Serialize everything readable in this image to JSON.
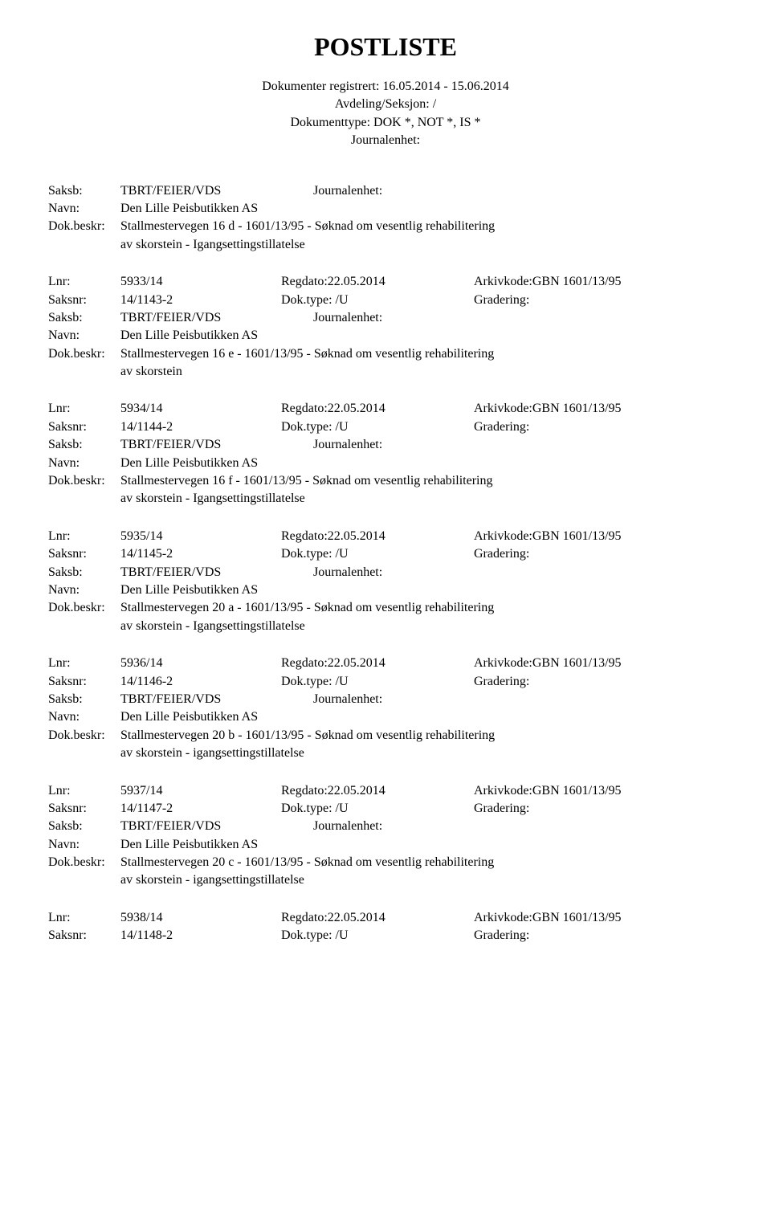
{
  "title": "POSTLISTE",
  "header": {
    "line1": "Dokumenter registrert: 16.05.2014 - 15.06.2014",
    "line2": "Avdeling/Seksjon: /",
    "line3": "Dokumenttype: DOK *, NOT *, IS *",
    "line4": "Journalenhet:"
  },
  "labels": {
    "saksb": "Saksb:",
    "navn": "Navn:",
    "dokbeskr": "Dok.beskr:",
    "lnr": "Lnr:",
    "saksnr": "Saksnr:"
  },
  "topEntry": {
    "saksb_val": "TBRT/FEIER/VDS",
    "saksb_right": "Journalenhet:",
    "navn_val": "Den Lille Peisbutikken AS",
    "dok_line1": "Stallmestervegen 16 d - 1601/13/95 - Søknad om vesentlig rehabilitering",
    "dok_line2": "av skorstein  - Igangsettingstillatelse"
  },
  "entries": [
    {
      "lnr": "5933/14",
      "regdato": "Regdato:22.05.2014",
      "arkiv": "Arkivkode:GBN 1601/13/95",
      "saksnr": "14/1143-2",
      "doktype": "Dok.type: /U",
      "gradering": "Gradering:",
      "saksb_val": "TBRT/FEIER/VDS",
      "saksb_right": "Journalenhet:",
      "navn_val": "Den Lille Peisbutikken AS",
      "dok_line1": "Stallmestervegen 16 e - 1601/13/95 - Søknad om vesentlig rehabilitering",
      "dok_line2": "av skorstein"
    },
    {
      "lnr": "5934/14",
      "regdato": "Regdato:22.05.2014",
      "arkiv": "Arkivkode:GBN 1601/13/95",
      "saksnr": "14/1144-2",
      "doktype": "Dok.type: /U",
      "gradering": "Gradering:",
      "saksb_val": "TBRT/FEIER/VDS",
      "saksb_right": "Journalenhet:",
      "navn_val": "Den Lille Peisbutikken AS",
      "dok_line1": "Stallmestervegen 16 f - 1601/13/95 - Søknad om vesentlig rehabilitering",
      "dok_line2": "av skorstein  - Igangsettingstillatelse"
    },
    {
      "lnr": "5935/14",
      "regdato": "Regdato:22.05.2014",
      "arkiv": "Arkivkode:GBN 1601/13/95",
      "saksnr": "14/1145-2",
      "doktype": "Dok.type: /U",
      "gradering": "Gradering:",
      "saksb_val": "TBRT/FEIER/VDS",
      "saksb_right": "Journalenhet:",
      "navn_val": "Den Lille Peisbutikken AS",
      "dok_line1": "Stallmestervegen 20 a - 1601/13/95 - Søknad om vesentlig rehabilitering",
      "dok_line2": "av skorstein  - Igangsettingstillatelse"
    },
    {
      "lnr": "5936/14",
      "regdato": "Regdato:22.05.2014",
      "arkiv": "Arkivkode:GBN 1601/13/95",
      "saksnr": "14/1146-2",
      "doktype": "Dok.type: /U",
      "gradering": "Gradering:",
      "saksb_val": "TBRT/FEIER/VDS",
      "saksb_right": "Journalenhet:",
      "navn_val": "Den Lille Peisbutikken AS",
      "dok_line1": "Stallmestervegen 20 b - 1601/13/95 - Søknad om vesentlig rehabilitering",
      "dok_line2": "av skorstein  - igangsettingstillatelse"
    },
    {
      "lnr": "5937/14",
      "regdato": "Regdato:22.05.2014",
      "arkiv": "Arkivkode:GBN 1601/13/95",
      "saksnr": "14/1147-2",
      "doktype": "Dok.type: /U",
      "gradering": "Gradering:",
      "saksb_val": "TBRT/FEIER/VDS",
      "saksb_right": "Journalenhet:",
      "navn_val": "Den Lille Peisbutikken AS",
      "dok_line1": "Stallmestervegen 20 c - 1601/13/95 - Søknad om vesentlig rehabilitering",
      "dok_line2": "av skorstein  - igangsettingstillatelse"
    }
  ],
  "bottom": {
    "lnr": "5938/14",
    "regdato": "Regdato:22.05.2014",
    "arkiv": "Arkivkode:GBN 1601/13/95",
    "saksnr": "14/1148-2",
    "doktype": "Dok.type: /U",
    "gradering": "Gradering:"
  }
}
